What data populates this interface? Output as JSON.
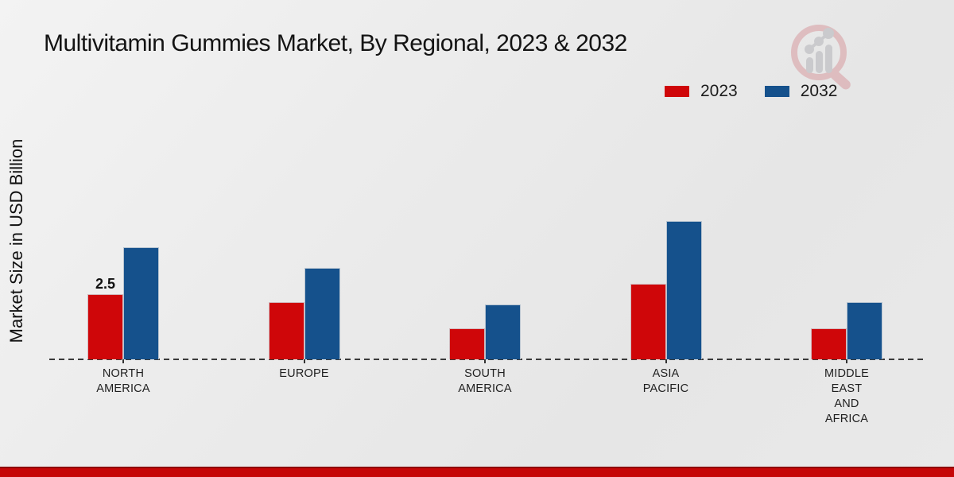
{
  "header": {
    "title": "Multivitamin Gummies Market, By Regional, 2023 & 2032"
  },
  "y_axis_label": "Market Size in USD Billion",
  "legend": {
    "items": [
      {
        "label": "2023",
        "color": "#cf0609"
      },
      {
        "label": "2032",
        "color": "#15518c"
      }
    ]
  },
  "logo_icon": "magnifier-bar-chart-logo",
  "colors": {
    "series_2023": "#cf0609",
    "series_2032": "#15518c",
    "footer_strip": "#c60707",
    "baseline": "#3a3a3a"
  },
  "chart_data": {
    "type": "bar",
    "title": "Multivitamin Gummies Market, By Regional, 2023 & 2032",
    "xlabel": "",
    "ylabel": "Market Size in USD Billion",
    "categories": [
      "NORTH AMERICA",
      "EUROPE",
      "SOUTH AMERICA",
      "ASIA PACIFIC",
      "MIDDLE EAST AND AFRICA"
    ],
    "category_lines": [
      [
        "NORTH",
        "AMERICA"
      ],
      [
        "EUROPE"
      ],
      [
        "SOUTH",
        "AMERICA"
      ],
      [
        "ASIA",
        "PACIFIC"
      ],
      [
        "MIDDLE",
        "EAST",
        "AND",
        "AFRICA"
      ]
    ],
    "series": [
      {
        "name": "2023",
        "color": "#cf0609",
        "values": [
          2.5,
          2.2,
          1.2,
          2.9,
          1.2
        ]
      },
      {
        "name": "2032",
        "color": "#15518c",
        "values": [
          4.3,
          3.5,
          2.1,
          5.3,
          2.2
        ]
      }
    ],
    "data_labels": [
      {
        "series_index": 0,
        "category_index": 0,
        "text": "2.5"
      }
    ],
    "ylim": [
      0,
      5.5
    ],
    "grid": false,
    "y_axis_ticks_visible": false,
    "baseline_style": "dashed",
    "legend_position": "top-right"
  },
  "footer": {}
}
